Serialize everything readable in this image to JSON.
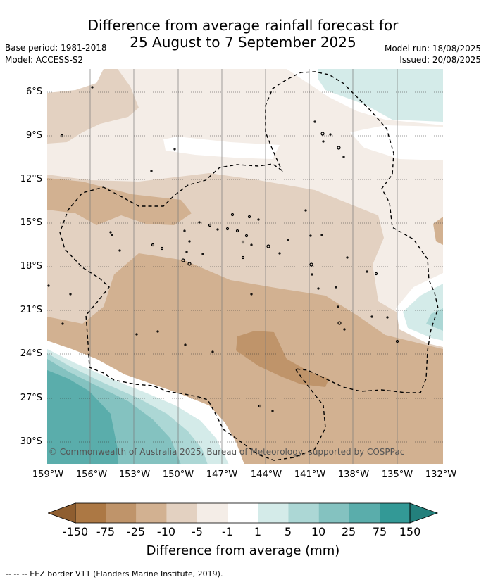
{
  "title": {
    "line1": "Difference from average rainfall forecast for",
    "line2": "25 August to 7 September 2025"
  },
  "meta": {
    "base_period": "Base period: 1981-2018",
    "model": "Model: ACCESS-S2",
    "model_run": "Model run: 18/08/2025",
    "issued": "Issued: 20/08/2025"
  },
  "map": {
    "lat_ticks": [
      "6°S",
      "9°S",
      "12°S",
      "15°S",
      "18°S",
      "21°S",
      "24°S",
      "27°S",
      "30°S"
    ],
    "lon_ticks": [
      "159°W",
      "156°W",
      "153°W",
      "150°W",
      "147°W",
      "144°W",
      "141°W",
      "138°W",
      "135°W",
      "132°W"
    ],
    "copyright": "© Commonwealth of Australia 2025, Bureau of Meteorology, supported by COSPPac",
    "colors": {
      "c_150m": "#ac7844",
      "c_75m": "#bf946a",
      "c_25m": "#d2b191",
      "c_10m": "#e3d1c1",
      "c_5m": "#f4ede7",
      "c_1m": "#ffffff",
      "c_1p": "#d4ebe9",
      "c_5p": "#acd7d5",
      "c_10p": "#84c2c0",
      "c_25p": "#5aadab",
      "c_75p": "#339996"
    }
  },
  "colorbar": {
    "labels": [
      "-150",
      "-75",
      "-25",
      "-10",
      "-5",
      "-1",
      "1",
      "5",
      "10",
      "25",
      "75",
      "150"
    ],
    "title": "Difference from average (mm)"
  },
  "footnote": "--  --  -- EEZ border V11 (Flanders Marine Institute, 2019)."
}
